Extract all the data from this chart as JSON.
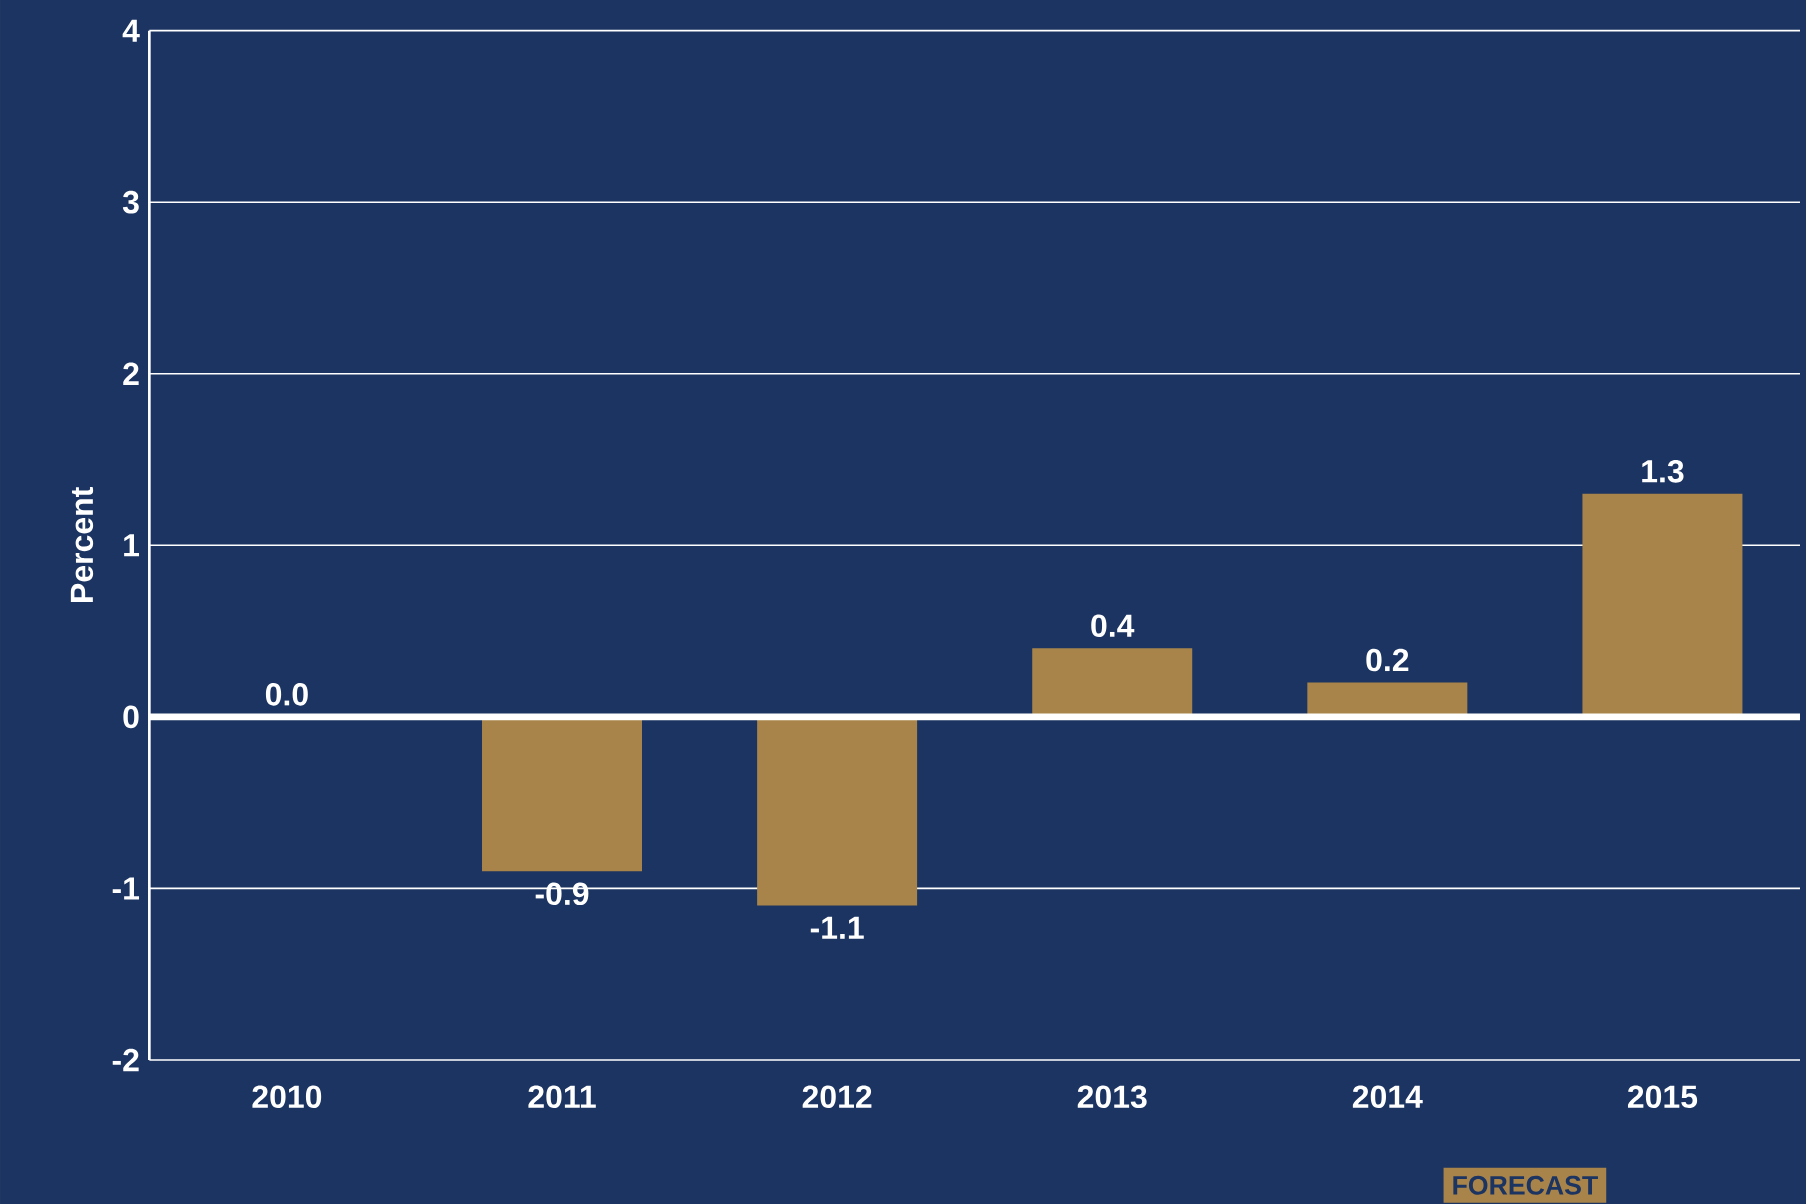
{
  "chart_data": {
    "type": "bar",
    "ylabel": "Percent",
    "categories": [
      "2010",
      "2011",
      "2012",
      "2013",
      "2014",
      "2015"
    ],
    "values": [
      0.0,
      -0.9,
      -1.1,
      0.4,
      0.2,
      1.3
    ],
    "value_labels": [
      "0.0",
      "-0.9",
      "-1.1",
      "0.4",
      "0.2",
      "1.3"
    ],
    "color": "#a8844a",
    "ylim": [
      -2,
      4
    ],
    "yticks": [
      -2,
      -1,
      0,
      1,
      2,
      3,
      4
    ],
    "grid": "y",
    "ref_lines": [
      {
        "axis": "y",
        "value": 0,
        "color": "#ffffff"
      }
    ],
    "annotations": [
      "FORECAST"
    ]
  }
}
